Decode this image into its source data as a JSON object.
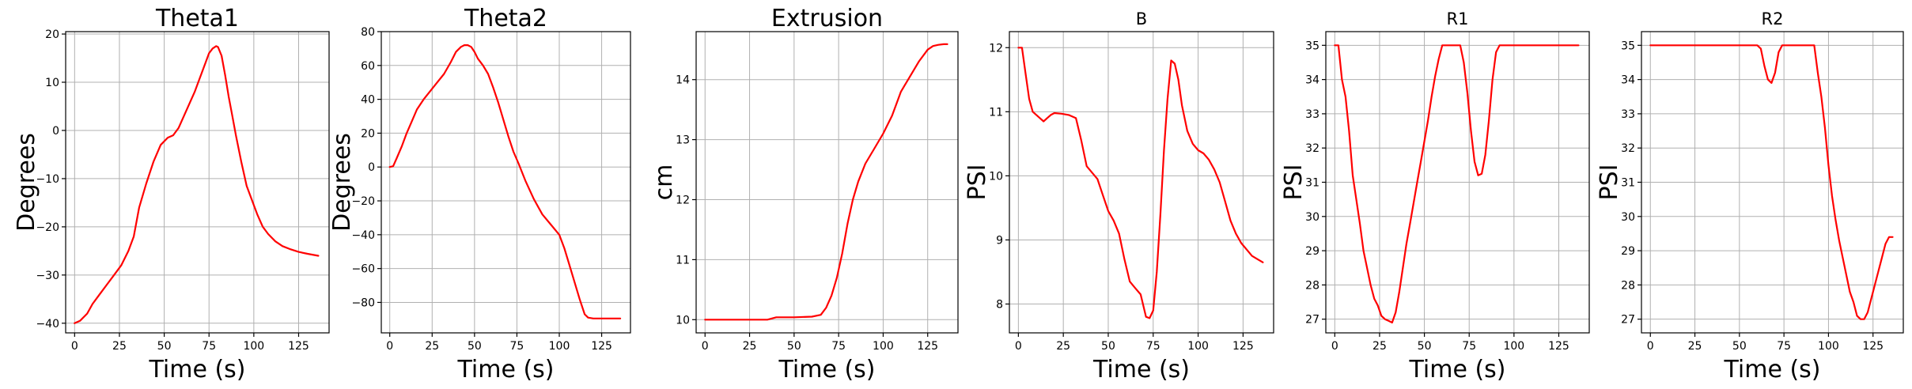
{
  "colors": {
    "series": "#ff0000",
    "grid": "#b0b0b0",
    "axis": "#000000"
  },
  "chart_data": [
    {
      "type": "line",
      "title": "Theta1",
      "xlabel": "Time (s)",
      "ylabel": "Degrees",
      "xlim": [
        -5,
        142
      ],
      "ylim": [
        -42,
        20.5
      ],
      "xticks": [
        0,
        25,
        50,
        75,
        100,
        125
      ],
      "yticks": [
        -40,
        -30,
        -20,
        -10,
        0,
        10,
        20
      ],
      "grid": true,
      "series": [
        {
          "x": [
            0,
            3,
            7,
            10,
            14,
            18,
            22,
            26,
            30,
            33,
            36,
            40,
            44,
            48,
            52,
            55,
            58,
            61,
            64,
            67,
            70,
            73,
            75,
            77,
            79,
            80,
            82,
            84,
            86,
            88,
            90,
            93,
            96,
            99,
            102,
            105,
            108,
            112,
            116,
            120,
            125,
            130,
            136
          ],
          "y": [
            -40,
            -39.5,
            -38,
            -36,
            -34,
            -32,
            -30,
            -28,
            -25,
            -22,
            -16,
            -11,
            -6.5,
            -3,
            -1.5,
            -1,
            0.5,
            3,
            5.5,
            8,
            11,
            14,
            16,
            17,
            17.5,
            17.3,
            15.5,
            11.5,
            7,
            3,
            -1,
            -6.5,
            -11.5,
            -14.5,
            -17.5,
            -20,
            -21.5,
            -23,
            -24,
            -24.6,
            -25.2,
            -25.6,
            -26
          ]
        }
      ]
    },
    {
      "type": "line",
      "title": "Theta2",
      "xlabel": "Time (s)",
      "ylabel": "Degrees",
      "xlim": [
        -5,
        142
      ],
      "ylim": [
        -98,
        80
      ],
      "xticks": [
        0,
        25,
        50,
        75,
        100,
        125
      ],
      "yticks": [
        -80,
        -60,
        -40,
        -20,
        0,
        20,
        40,
        60,
        80
      ],
      "grid": true,
      "series": [
        {
          "x": [
            0,
            2,
            4,
            7,
            10,
            13,
            16,
            20,
            24,
            28,
            32,
            36,
            39,
            42,
            44,
            46,
            48,
            50,
            52,
            55,
            58,
            61,
            64,
            67,
            70,
            73,
            76,
            80,
            85,
            90,
            95,
            100,
            103,
            106,
            109,
            112,
            115,
            117,
            120,
            125,
            130,
            136
          ],
          "y": [
            0,
            0.5,
            5,
            12,
            20,
            27,
            34,
            40,
            45,
            50,
            55,
            62,
            68,
            71,
            72,
            72,
            71,
            68,
            64,
            60,
            55,
            47,
            38,
            28,
            18,
            9,
            2,
            -8,
            -19,
            -28,
            -34,
            -40,
            -48,
            -58,
            -68,
            -78,
            -87,
            -89,
            -89.5,
            -89.5,
            -89.5,
            -89.5
          ]
        }
      ]
    },
    {
      "type": "line",
      "title": "Extrusion",
      "xlabel": "Time (s)",
      "ylabel": "cm",
      "xlim": [
        -5,
        142
      ],
      "ylim": [
        9.78,
        14.8
      ],
      "xticks": [
        0,
        25,
        50,
        75,
        100,
        125
      ],
      "yticks": [
        10,
        11,
        12,
        13,
        14
      ],
      "grid": true,
      "series": [
        {
          "x": [
            0,
            10,
            20,
            30,
            35,
            40,
            50,
            60,
            65,
            68,
            71,
            74,
            77,
            80,
            83,
            86,
            90,
            95,
            100,
            105,
            110,
            115,
            120,
            125,
            128,
            131,
            134,
            136
          ],
          "y": [
            10,
            10,
            10,
            10,
            10,
            10.04,
            10.04,
            10.05,
            10.08,
            10.2,
            10.4,
            10.7,
            11.1,
            11.6,
            12.0,
            12.3,
            12.6,
            12.85,
            13.1,
            13.4,
            13.8,
            14.05,
            14.3,
            14.5,
            14.56,
            14.58,
            14.59,
            14.59
          ]
        }
      ]
    },
    {
      "type": "line",
      "title": "B",
      "xlabel": "Time (s)",
      "ylabel": "PSI",
      "xlim": [
        -5,
        142
      ],
      "ylim": [
        7.55,
        12.25
      ],
      "xticks": [
        0,
        25,
        50,
        75,
        100,
        125
      ],
      "yticks": [
        8,
        9,
        10,
        11,
        12
      ],
      "grid": true,
      "series": [
        {
          "x": [
            0,
            2,
            4,
            6,
            8,
            10,
            12,
            14,
            16,
            18,
            20,
            24,
            28,
            32,
            35,
            38,
            41,
            44,
            47,
            50,
            53,
            56,
            59,
            62,
            65,
            68,
            71,
            73,
            75,
            77,
            79,
            81,
            83,
            85,
            87,
            89,
            91,
            94,
            97,
            100,
            103,
            106,
            109,
            112,
            115,
            118,
            121,
            124,
            127,
            130,
            133,
            136
          ],
          "y": [
            12,
            12,
            11.6,
            11.2,
            11.0,
            10.95,
            10.9,
            10.85,
            10.9,
            10.95,
            10.98,
            10.97,
            10.95,
            10.9,
            10.55,
            10.15,
            10.05,
            9.95,
            9.7,
            9.45,
            9.3,
            9.1,
            8.7,
            8.35,
            8.25,
            8.15,
            7.8,
            7.78,
            7.9,
            8.5,
            9.4,
            10.4,
            11.2,
            11.8,
            11.75,
            11.5,
            11.1,
            10.7,
            10.5,
            10.4,
            10.35,
            10.25,
            10.1,
            9.9,
            9.6,
            9.3,
            9.1,
            8.95,
            8.85,
            8.75,
            8.7,
            8.65
          ]
        }
      ]
    },
    {
      "type": "line",
      "title": "R1",
      "xlabel": "Time (s)",
      "ylabel": "PSI",
      "xlim": [
        -5,
        142
      ],
      "ylim": [
        26.6,
        35.4
      ],
      "xticks": [
        0,
        25,
        50,
        75,
        100,
        125
      ],
      "yticks": [
        27,
        28,
        29,
        30,
        31,
        32,
        33,
        34,
        35
      ],
      "grid": true,
      "series": [
        {
          "x": [
            0,
            2,
            4,
            6,
            8,
            10,
            12,
            14,
            16,
            18,
            20,
            22,
            24,
            26,
            28,
            30,
            32,
            34,
            36,
            38,
            40,
            42,
            44,
            46,
            48,
            50,
            52,
            54,
            56,
            58,
            60,
            62,
            64,
            66,
            68,
            70,
            72,
            74,
            76,
            78,
            80,
            82,
            84,
            86,
            88,
            90,
            92,
            94,
            100,
            110,
            120,
            130,
            136
          ],
          "y": [
            35,
            35,
            34,
            33.5,
            32.5,
            31.2,
            30.5,
            29.8,
            29,
            28.5,
            28,
            27.6,
            27.4,
            27.1,
            27,
            26.95,
            26.9,
            27.2,
            27.8,
            28.5,
            29.2,
            29.8,
            30.4,
            31,
            31.6,
            32.2,
            32.8,
            33.5,
            34.1,
            34.6,
            35,
            35,
            35,
            35,
            35,
            35,
            34.5,
            33.6,
            32.5,
            31.6,
            31.2,
            31.25,
            31.8,
            32.8,
            34,
            34.8,
            35,
            35,
            35,
            35,
            35,
            35,
            35
          ]
        }
      ]
    },
    {
      "type": "line",
      "title": "R2",
      "xlabel": "Time (s)",
      "ylabel": "PSI",
      "xlim": [
        -5,
        142
      ],
      "ylim": [
        26.6,
        35.4
      ],
      "xticks": [
        0,
        25,
        50,
        75,
        100,
        125
      ],
      "yticks": [
        27,
        28,
        29,
        30,
        31,
        32,
        33,
        34,
        35
      ],
      "grid": true,
      "series": [
        {
          "x": [
            0,
            20,
            40,
            60,
            62,
            64,
            66,
            68,
            70,
            72,
            74,
            76,
            80,
            84,
            88,
            92,
            94,
            96,
            98,
            100,
            102,
            104,
            106,
            108,
            110,
            112,
            114,
            116,
            118,
            120,
            122,
            124,
            126,
            128,
            130,
            132,
            134,
            136
          ],
          "y": [
            35,
            35,
            35,
            35,
            34.9,
            34.4,
            34.0,
            33.9,
            34.2,
            34.8,
            35,
            35,
            35,
            35,
            35,
            35,
            34.2,
            33.5,
            32.6,
            31.5,
            30.6,
            29.9,
            29.3,
            28.8,
            28.3,
            27.8,
            27.5,
            27.1,
            27.0,
            27.0,
            27.2,
            27.6,
            28.0,
            28.4,
            28.8,
            29.2,
            29.4,
            29.4
          ]
        }
      ]
    }
  ]
}
